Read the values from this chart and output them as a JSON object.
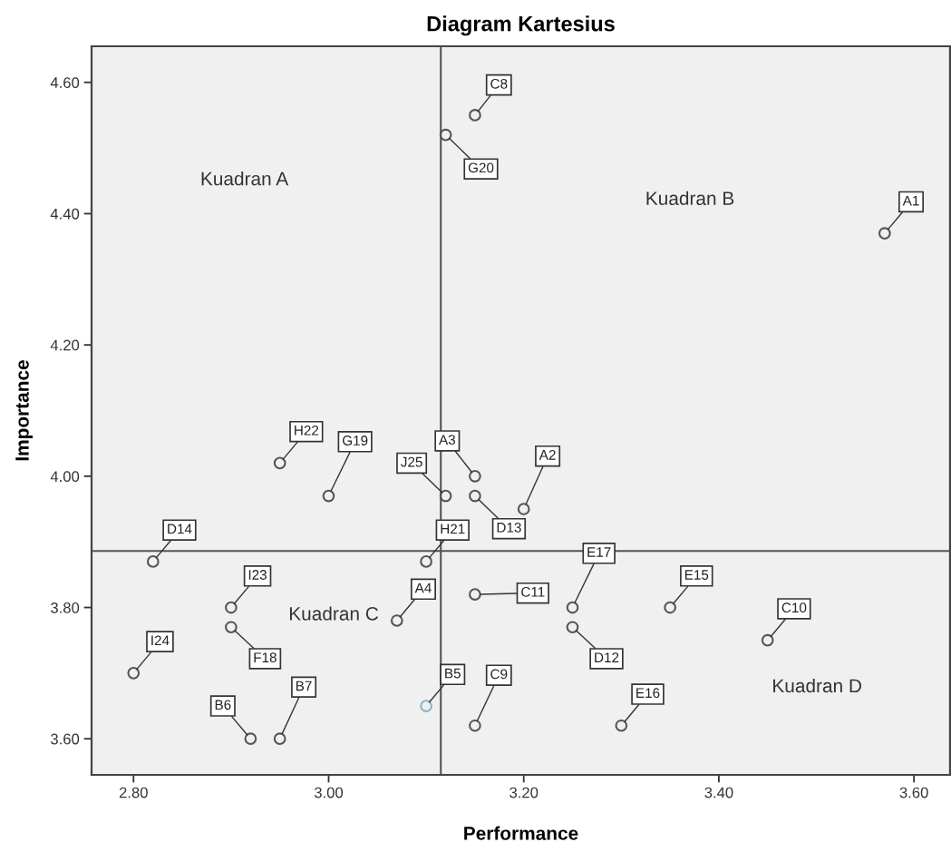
{
  "chart_data": {
    "type": "scatter",
    "title": "Diagram Kartesius",
    "xlabel": "Performance",
    "ylabel": "Importance",
    "x": [
      3.57,
      3.2,
      3.15,
      3.07,
      3.1,
      2.92,
      2.95,
      3.15,
      3.15,
      3.45,
      3.15,
      3.25,
      3.15,
      2.82,
      3.35,
      3.3,
      3.25,
      2.9,
      3.0,
      3.12,
      3.1,
      2.95,
      2.9,
      2.8,
      3.12
    ],
    "values": [
      4.37,
      3.95,
      4.0,
      3.78,
      3.65,
      3.6,
      3.6,
      4.55,
      3.62,
      3.75,
      3.82,
      3.77,
      3.97,
      3.87,
      3.8,
      3.62,
      3.8,
      3.77,
      3.97,
      4.52,
      3.87,
      4.02,
      3.8,
      3.7,
      3.97
    ],
    "colors": [
      "#555555",
      "#555555",
      "#555555",
      "#555555",
      "#8fb3c8",
      "#555555",
      "#555555",
      "#555555",
      "#555555",
      "#555555",
      "#555555",
      "#555555",
      "#555555",
      "#555555",
      "#555555",
      "#555555",
      "#555555",
      "#555555",
      "#555555",
      "#555555",
      "#555555",
      "#555555",
      "#555555",
      "#555555",
      "#555555"
    ],
    "marker": "circle",
    "xlim": [
      2.757,
      3.637
    ],
    "ylim": [
      3.545,
      4.655
    ],
    "xticks": [
      {
        "value": 2.8,
        "label": "2.80"
      },
      {
        "value": 3.0,
        "label": "3.00"
      },
      {
        "value": 3.2,
        "label": "3.20"
      },
      {
        "value": 3.4,
        "label": "3.40"
      },
      {
        "value": 3.6,
        "label": "3.60"
      }
    ],
    "yticks": [
      {
        "value": 3.6,
        "label": "3.60"
      },
      {
        "value": 3.8,
        "label": "3.80"
      },
      {
        "value": 4.0,
        "label": "4.00"
      },
      {
        "value": 4.2,
        "label": "4.20"
      },
      {
        "value": 4.4,
        "label": "4.40"
      },
      {
        "value": 4.6,
        "label": "4.60"
      }
    ],
    "ref_lines": [
      {
        "axis": "x",
        "value": 3.115,
        "color": "#555555"
      },
      {
        "axis": "y",
        "value": 3.886,
        "color": "#555555"
      }
    ],
    "grid": false,
    "annotations": [
      {
        "text": "A1",
        "x": 3.57,
        "y": 4.37
      },
      {
        "text": "A2",
        "x": 3.2,
        "y": 3.95
      },
      {
        "text": "A3",
        "x": 3.15,
        "y": 4.0
      },
      {
        "text": "A4",
        "x": 3.07,
        "y": 3.78
      },
      {
        "text": "B5",
        "x": 3.1,
        "y": 3.65
      },
      {
        "text": "B6",
        "x": 2.92,
        "y": 3.6
      },
      {
        "text": "B7",
        "x": 2.95,
        "y": 3.6
      },
      {
        "text": "C8",
        "x": 3.15,
        "y": 4.55
      },
      {
        "text": "C9",
        "x": 3.15,
        "y": 3.62
      },
      {
        "text": "C10",
        "x": 3.45,
        "y": 3.75
      },
      {
        "text": "C11",
        "x": 3.15,
        "y": 3.82
      },
      {
        "text": "D12",
        "x": 3.25,
        "y": 3.77
      },
      {
        "text": "D13",
        "x": 3.15,
        "y": 3.97
      },
      {
        "text": "D14",
        "x": 2.82,
        "y": 3.87
      },
      {
        "text": "E15",
        "x": 3.35,
        "y": 3.8
      },
      {
        "text": "E16",
        "x": 3.3,
        "y": 3.62
      },
      {
        "text": "E17",
        "x": 3.25,
        "y": 3.8
      },
      {
        "text": "F18",
        "x": 2.9,
        "y": 3.77
      },
      {
        "text": "G19",
        "x": 3.0,
        "y": 3.97
      },
      {
        "text": "G20",
        "x": 3.12,
        "y": 4.52
      },
      {
        "text": "H21",
        "x": 3.1,
        "y": 3.87
      },
      {
        "text": "H22",
        "x": 2.95,
        "y": 4.02
      },
      {
        "text": "I23",
        "x": 2.9,
        "y": 3.8
      },
      {
        "text": "I24",
        "x": 2.8,
        "y": 3.7
      },
      {
        "text": "J25",
        "x": 3.12,
        "y": 3.97
      },
      "Kuadran A",
      "Kuadran B",
      "Kuadran C",
      "Kuadran D"
    ]
  }
}
